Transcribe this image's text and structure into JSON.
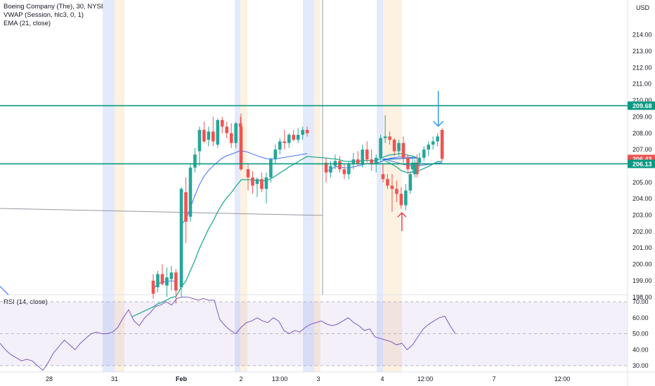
{
  "symbol": {
    "title": "Boeing Company (The), 30, NYSE",
    "indicators": [
      "VWAP (Session, hlc3, 0, 1)",
      "EMA (21, close)"
    ],
    "currency": "USD"
  },
  "colors": {
    "up": "#26a69a",
    "down": "#ef5350",
    "level": "#089981",
    "vwap": "#2962ff",
    "ema": "#22ab94",
    "rsi": "#7e57c2",
    "preMarket": "#e3eafc",
    "afterHours": "#fdf1e1",
    "arrowDown": "#2196f3",
    "arrowUp": "#f23645"
  },
  "chart_data": [
    {
      "type": "candlestick",
      "title": "Boeing Company (The), 30, NYSE",
      "series": [
        {
          "name": "VWAP (Session, hlc3, 0, 1)"
        },
        {
          "name": "EMA (21, close)"
        }
      ],
      "y_axis": {
        "ticks": [
          198,
          199,
          200,
          201,
          202,
          203,
          204,
          205,
          206,
          207,
          208,
          209,
          210,
          211,
          212,
          213,
          214
        ],
        "tick_labels": [
          "198.00",
          "199.00",
          "200.00",
          "201.00",
          "202.00",
          "203.00",
          "204.00",
          "205.00",
          "206.00",
          "207.00",
          "208.00",
          "209.00",
          "210.00",
          "211.00",
          "212.00",
          "213.00",
          "214.00"
        ],
        "ylim": [
          197.5,
          214.8
        ],
        "currency": "USD"
      },
      "x_axis": {
        "tick_labels": [
          "28",
          "31",
          "Feb",
          "2",
          "13:00",
          "3",
          "4",
          "12:00",
          "7",
          "12:00"
        ]
      },
      "horizontal_levels": [
        209.68,
        206.13
      ],
      "price_tags": [
        {
          "label": "209.68",
          "value": 209.68,
          "color": "#089981"
        },
        {
          "label": "206.43",
          "value": 206.43,
          "color": "#ef5350"
        },
        {
          "label": "206.13",
          "value": 206.13,
          "color": "#089981"
        }
      ],
      "candles": [
        [
          199.0,
          199.4,
          197.9,
          198.2
        ],
        [
          198.6,
          199.6,
          198.3,
          199.4
        ],
        [
          199.4,
          200.0,
          198.7,
          198.8
        ],
        [
          198.7,
          199.8,
          198.0,
          199.2
        ],
        [
          199.1,
          199.9,
          198.4,
          199.5
        ],
        [
          199.5,
          199.7,
          197.6,
          198.4
        ],
        [
          198.6,
          204.7,
          198.0,
          204.6
        ],
        [
          204.4,
          205.3,
          201.3,
          202.6
        ],
        [
          202.9,
          206.1,
          202.6,
          205.9
        ],
        [
          205.9,
          207.1,
          205.6,
          206.7
        ],
        [
          206.9,
          208.4,
          206.0,
          208.2
        ],
        [
          208.2,
          208.7,
          207.4,
          207.5
        ],
        [
          207.6,
          208.4,
          207.2,
          208.1
        ],
        [
          208.1,
          209.0,
          207.2,
          207.5
        ],
        [
          207.3,
          208.9,
          207.1,
          208.8
        ],
        [
          208.8,
          209.0,
          208.0,
          208.4
        ],
        [
          208.4,
          208.7,
          207.7,
          208.0
        ],
        [
          208.0,
          208.6,
          207.1,
          207.4
        ],
        [
          207.4,
          208.7,
          207.1,
          208.6
        ],
        [
          208.6,
          209.0,
          208.0,
          208.4
        ],
        [
          208.4,
          209.2,
          205.7,
          205.8
        ],
        [
          205.8,
          206.1,
          204.5,
          205.3
        ],
        [
          205.3,
          205.7,
          204.3,
          204.8
        ],
        [
          204.9,
          205.3,
          204.1,
          205.2
        ],
        [
          205.2,
          205.6,
          204.4,
          204.6
        ],
        [
          204.6,
          205.6,
          203.7,
          205.3
        ],
        [
          205.3,
          206.5,
          205.0,
          206.4
        ],
        [
          206.4,
          207.3,
          206.1,
          207.0
        ],
        [
          207.0,
          207.7,
          206.7,
          207.5
        ],
        [
          207.5,
          208.2,
          207.0,
          207.4
        ],
        [
          207.4,
          208.0,
          207.1,
          207.9
        ],
        [
          207.9,
          208.2,
          207.5,
          207.6
        ],
        [
          207.6,
          208.3,
          207.4,
          207.9
        ],
        [
          207.9,
          208.4,
          207.6,
          208.2
        ],
        [
          208.2,
          208.4,
          207.8,
          208.0
        ],
        [
          206.2,
          206.5,
          205.0,
          205.6
        ],
        [
          205.6,
          206.3,
          205.3,
          206.0
        ],
        [
          206.0,
          206.7,
          205.8,
          206.3
        ],
        [
          206.3,
          206.6,
          205.6,
          205.8
        ],
        [
          205.8,
          206.1,
          205.2,
          205.5
        ],
        [
          205.5,
          206.3,
          205.2,
          206.1
        ],
        [
          206.1,
          206.8,
          205.8,
          206.4
        ],
        [
          206.4,
          206.9,
          206.0,
          206.1
        ],
        [
          206.1,
          207.3,
          205.9,
          207.0
        ],
        [
          207.0,
          207.5,
          206.2,
          206.4
        ],
        [
          206.4,
          207.0,
          205.7,
          206.1
        ],
        [
          206.1,
          206.7,
          205.6,
          206.5
        ],
        [
          206.5,
          207.9,
          206.3,
          207.7
        ],
        [
          207.7,
          209.1,
          207.4,
          207.8
        ],
        [
          207.8,
          208.1,
          207.3,
          207.6
        ],
        [
          207.6,
          207.7,
          206.6,
          206.9
        ],
        [
          206.9,
          207.6,
          206.6,
          207.4
        ],
        [
          207.4,
          207.8,
          206.2,
          206.5
        ],
        [
          206.5,
          206.7,
          205.5,
          205.8
        ],
        [
          205.8,
          206.6,
          205.6,
          206.2
        ],
        [
          206.2,
          206.7,
          205.3,
          205.5
        ],
        [
          205.5,
          206.1,
          205.0,
          205.2
        ],
        [
          205.2,
          205.5,
          204.6,
          204.8
        ],
        [
          204.8,
          205.5,
          203.2,
          204.6
        ],
        [
          204.6,
          205.1,
          203.8,
          204.3
        ],
        [
          204.3,
          204.7,
          203.4,
          203.6
        ],
        [
          203.6,
          204.9,
          203.3,
          204.5
        ],
        [
          204.5,
          205.7,
          204.3,
          205.5
        ],
        [
          205.5,
          206.4,
          205.3,
          206.2
        ],
        [
          206.2,
          206.8,
          205.9,
          206.5
        ],
        [
          206.5,
          207.2,
          206.3,
          207.0
        ],
        [
          207.0,
          207.5,
          206.6,
          207.3
        ],
        [
          207.3,
          207.8,
          207.0,
          207.5
        ],
        [
          207.5,
          208.0,
          207.2,
          207.8
        ],
        [
          208.2,
          208.3,
          206.3,
          206.43
        ]
      ],
      "markers": [
        {
          "type": "arrow-down",
          "candle": 68
        },
        {
          "type": "arrow-up",
          "candle": 60
        }
      ]
    },
    {
      "type": "line",
      "title": "RSI (14, close)",
      "y_axis": {
        "ticks": [
          30,
          40,
          50,
          60,
          70
        ],
        "tick_labels": [
          "30.00",
          "40.00",
          "50.00",
          "60.00",
          "70.00"
        ],
        "ylim": [
          27,
          75
        ]
      },
      "bands": {
        "upper": 70,
        "middle": 50,
        "lower": 30
      },
      "values": [
        44,
        40,
        37,
        35,
        33,
        34,
        33,
        30,
        27,
        32,
        38,
        42,
        46,
        43,
        40,
        44,
        47,
        50,
        51,
        50,
        50,
        51,
        54,
        60,
        65,
        58,
        55,
        60,
        63,
        67,
        68,
        70,
        68,
        72,
        73,
        73,
        72,
        71,
        72,
        71,
        71,
        59,
        55,
        52,
        50,
        54,
        57,
        58,
        60,
        58,
        57,
        60,
        58,
        52,
        50,
        52,
        51,
        54,
        56,
        57,
        58,
        56,
        55,
        56,
        58,
        60,
        57,
        55,
        52,
        53,
        48,
        47,
        46,
        45,
        43,
        44,
        40,
        43,
        48,
        53,
        56,
        58,
        60,
        61,
        55,
        50
      ]
    }
  ]
}
